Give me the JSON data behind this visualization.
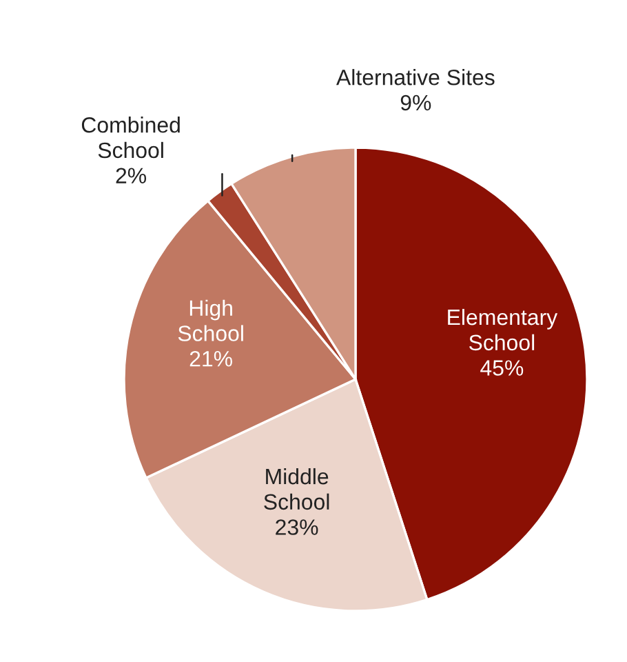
{
  "chart_data": {
    "type": "pie",
    "categories": [
      "Elementary\nSchool",
      "Middle\nSchool",
      "High\nSchool",
      "Combined\nSchool",
      "Alternative Sites"
    ],
    "values": [
      45,
      23,
      21,
      2,
      9
    ],
    "colors": [
      "#8b1004",
      "#ecd5cb",
      "#c07862",
      "#a8432f",
      "#d09580"
    ],
    "value_labels": [
      "45%",
      "23%",
      "21%",
      "2%",
      "9%"
    ],
    "legend": false
  }
}
